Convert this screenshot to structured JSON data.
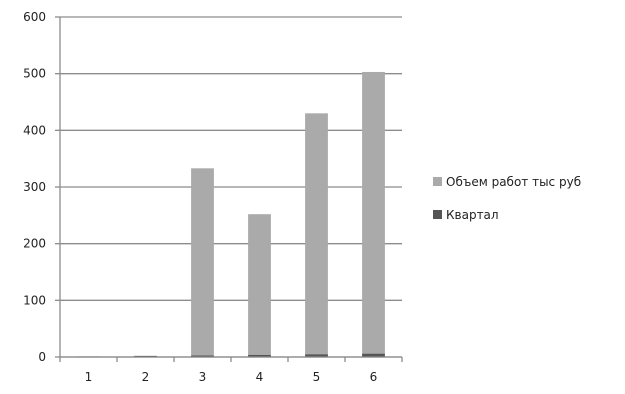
{
  "chart_data": {
    "type": "bar",
    "stacked": true,
    "categories": [
      "1",
      "2",
      "3",
      "4",
      "5",
      "6"
    ],
    "series": [
      {
        "name": "Объем работ тыс руб",
        "color": "#aaaaaa",
        "values": [
          0,
          0,
          330,
          248,
          425,
          497
        ]
      },
      {
        "name": "Квартал",
        "color": "#555555",
        "values": [
          1,
          2,
          3,
          4,
          5,
          6
        ]
      }
    ],
    "y_ticks": [
      "0",
      "100",
      "200",
      "300",
      "400",
      "500",
      "600"
    ],
    "ylim": [
      0,
      600
    ],
    "grid": true,
    "legend_position": "right"
  }
}
